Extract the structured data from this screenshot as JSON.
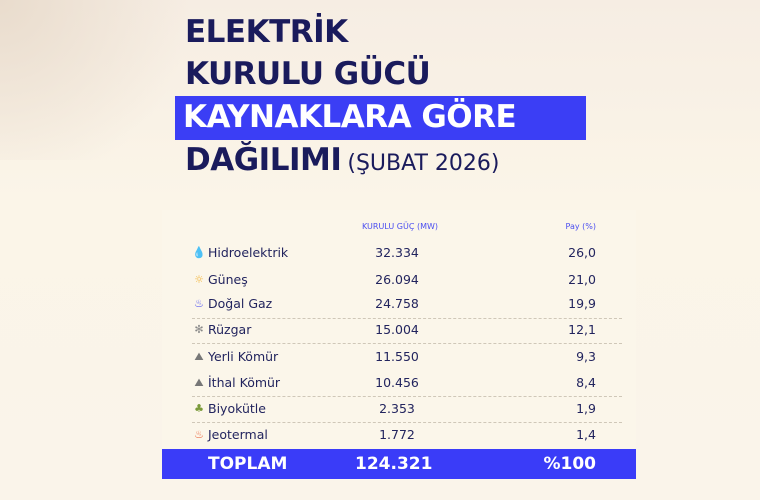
{
  "title": {
    "line1": "ELEKTRİK",
    "line2": "KURULU GÜCÜ",
    "line3": "KAYNAKLARA GÖRE",
    "line4": "DAĞILIMI",
    "period": "(ŞUBAT 2026)"
  },
  "colors": {
    "navy": "#1a1b5c",
    "accent": "#3b3ef5",
    "background": "#fbf5e8"
  },
  "chart_data": {
    "type": "table",
    "columns": [
      "",
      "KURULU GÜÇ (MW)",
      "Pay (%)"
    ],
    "rows": [
      {
        "source": "Hidroelektrik",
        "icon": "water-drop-icon",
        "mw": "32.334",
        "share": "26,0"
      },
      {
        "source": "Güneş",
        "icon": "sun-icon",
        "mw": "26.094",
        "share": "21,0"
      },
      {
        "source": "Doğal Gaz",
        "icon": "flame-icon",
        "mw": "24.758",
        "share": "19,9"
      },
      {
        "source": "Rüzgar",
        "icon": "wind-turbine-icon",
        "mw": "15.004",
        "share": "12,1"
      },
      {
        "source": "Yerli Kömür",
        "icon": "coal-icon",
        "mw": "11.550",
        "share": "9,3"
      },
      {
        "source": "İthal Kömür",
        "icon": "coal-icon",
        "mw": "10.456",
        "share": "8,4"
      },
      {
        "source": "Biyokütle",
        "icon": "biomass-icon",
        "mw": "2.353",
        "share": "1,9"
      },
      {
        "source": "Jeotermal",
        "icon": "geothermal-icon",
        "mw": "1.772",
        "share": "1,4"
      }
    ],
    "total": {
      "label": "TOPLAM",
      "mw": "124.321",
      "share": "%100"
    }
  }
}
